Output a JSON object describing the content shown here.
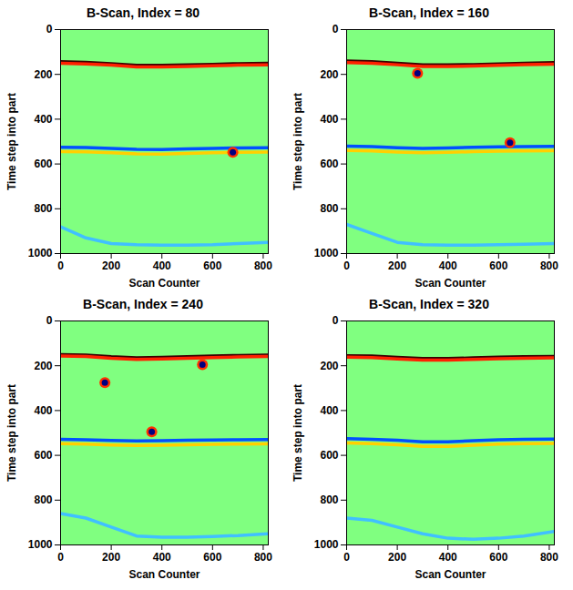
{
  "chart_data": [
    {
      "type": "line",
      "title": "B-Scan, Index = 80",
      "x_label": "Scan Counter",
      "y_label": "Time step into part",
      "xlim": [
        0,
        820
      ],
      "xticks": [
        0,
        200,
        400,
        600,
        800
      ],
      "ylim": [
        0,
        1000
      ],
      "yticks": [
        0,
        200,
        400,
        600,
        800,
        1000
      ],
      "x": [
        0,
        100,
        200,
        300,
        400,
        500,
        600,
        700,
        820
      ],
      "series": [
        {
          "color": "#3a0000",
          "values": [
            143,
            146,
            152,
            160,
            160,
            158,
            155,
            152,
            150
          ]
        },
        {
          "color": "#ff2000",
          "values": [
            150,
            153,
            159,
            167,
            167,
            165,
            162,
            159,
            157
          ]
        },
        {
          "color": "#0050ff",
          "values": [
            525,
            526,
            530,
            535,
            536,
            533,
            530,
            528,
            527
          ]
        },
        {
          "color": "#ffd000",
          "values": [
            545,
            546,
            550,
            555,
            556,
            553,
            550,
            548,
            547
          ]
        },
        {
          "color": "#40c0ff",
          "values": [
            880,
            930,
            955,
            960,
            962,
            962,
            960,
            955,
            950
          ]
        }
      ],
      "defects": {
        "color": "#000080",
        "x": [
          680
        ],
        "y": [
          548
        ]
      }
    },
    {
      "type": "line",
      "title": "B-Scan, Index = 160",
      "x_label": "Scan Counter",
      "y_label": "Time step into part",
      "xlim": [
        0,
        820
      ],
      "xticks": [
        0,
        200,
        400,
        600,
        800
      ],
      "ylim": [
        0,
        1000
      ],
      "yticks": [
        0,
        200,
        400,
        600,
        800,
        1000
      ],
      "x": [
        0,
        100,
        200,
        300,
        400,
        500,
        600,
        700,
        820
      ],
      "series": [
        {
          "color": "#3a0000",
          "values": [
            140,
            143,
            150,
            158,
            158,
            156,
            153,
            150,
            147
          ]
        },
        {
          "color": "#ff2000",
          "values": [
            147,
            150,
            157,
            165,
            165,
            163,
            160,
            157,
            154
          ]
        },
        {
          "color": "#0050ff",
          "values": [
            520,
            522,
            527,
            530,
            528,
            525,
            523,
            522,
            521
          ]
        },
        {
          "color": "#ffd000",
          "values": [
            540,
            542,
            547,
            550,
            548,
            545,
            543,
            542,
            541
          ]
        },
        {
          "color": "#40c0ff",
          "values": [
            870,
            910,
            950,
            960,
            962,
            962,
            960,
            958,
            955
          ]
        }
      ],
      "defects": {
        "color": "#000080",
        "x": [
          280,
          645
        ],
        "y": [
          195,
          505
        ]
      }
    },
    {
      "type": "line",
      "title": "B-Scan, Index = 240",
      "x_label": "Scan Counter",
      "y_label": "Time step into part",
      "xlim": [
        0,
        820
      ],
      "xticks": [
        0,
        200,
        400,
        600,
        800
      ],
      "ylim": [
        0,
        1000
      ],
      "yticks": [
        0,
        200,
        400,
        600,
        800,
        1000
      ],
      "x": [
        0,
        100,
        200,
        300,
        400,
        500,
        600,
        700,
        820
      ],
      "series": [
        {
          "color": "#3a0000",
          "values": [
            150,
            152,
            160,
            165,
            163,
            160,
            157,
            154,
            152
          ]
        },
        {
          "color": "#ff2000",
          "values": [
            157,
            159,
            167,
            172,
            170,
            167,
            164,
            161,
            159
          ]
        },
        {
          "color": "#0050ff",
          "values": [
            528,
            530,
            534,
            536,
            535,
            533,
            531,
            530,
            529
          ]
        },
        {
          "color": "#ffd000",
          "values": [
            548,
            550,
            554,
            556,
            555,
            553,
            551,
            550,
            549
          ]
        },
        {
          "color": "#40c0ff",
          "values": [
            860,
            880,
            920,
            960,
            965,
            965,
            962,
            958,
            950
          ]
        }
      ],
      "defects": {
        "color": "#000080",
        "x": [
          175,
          560,
          360
        ],
        "y": [
          275,
          195,
          495
        ]
      }
    },
    {
      "type": "line",
      "title": "B-Scan, Index = 320",
      "x_label": "Scan Counter",
      "y_label": "Time step into part",
      "xlim": [
        0,
        820
      ],
      "xticks": [
        0,
        200,
        400,
        600,
        800
      ],
      "ylim": [
        0,
        1000
      ],
      "yticks": [
        0,
        200,
        400,
        600,
        800,
        1000
      ],
      "x": [
        0,
        100,
        200,
        300,
        400,
        500,
        600,
        700,
        820
      ],
      "series": [
        {
          "color": "#3a0000",
          "values": [
            155,
            157,
            163,
            168,
            168,
            165,
            162,
            160,
            158
          ]
        },
        {
          "color": "#ff2000",
          "values": [
            162,
            164,
            170,
            175,
            175,
            172,
            169,
            167,
            165
          ]
        },
        {
          "color": "#0050ff",
          "values": [
            525,
            528,
            533,
            540,
            540,
            535,
            530,
            528,
            527
          ]
        },
        {
          "color": "#ffd000",
          "values": [
            545,
            548,
            553,
            560,
            560,
            555,
            550,
            548,
            547
          ]
        },
        {
          "color": "#40c0ff",
          "values": [
            880,
            890,
            920,
            950,
            970,
            975,
            970,
            960,
            940
          ]
        }
      ],
      "defects": {
        "color": "#000080",
        "x": [],
        "y": []
      }
    }
  ]
}
